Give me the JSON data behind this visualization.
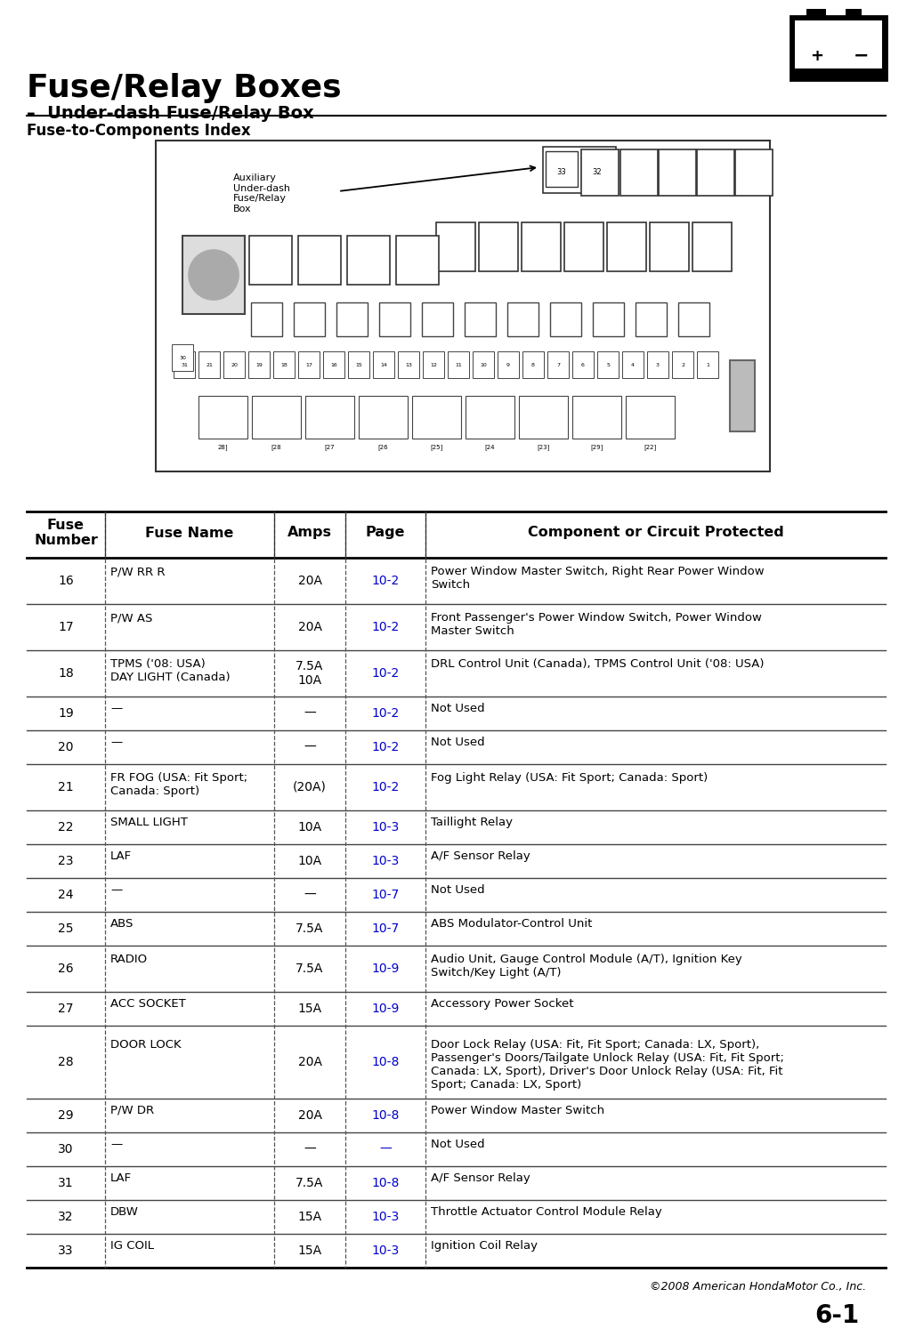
{
  "title": "Fuse/Relay Boxes",
  "subtitle": "Under-dash Fuse/Relay Box",
  "section_title": "Fuse-to-Components Index",
  "copyright": "©2008 American HondaMotor Co., Inc.",
  "page_num": "6-1",
  "col_headers": [
    "Fuse\nNumber",
    "Fuse Name",
    "Amps",
    "Page",
    "Component or Circuit Protected"
  ],
  "rows": [
    {
      "num": "16",
      "name": "P/W RR R",
      "amps": "20A",
      "page": "10-2",
      "desc": "Power Window Master Switch, Right Rear Power Window\nSwitch"
    },
    {
      "num": "17",
      "name": "P/W AS",
      "amps": "20A",
      "page": "10-2",
      "desc": "Front Passenger's Power Window Switch, Power Window\nMaster Switch"
    },
    {
      "num": "18",
      "name": "TPMS ('08: USA)\nDAY LIGHT (Canada)",
      "amps": "7.5A\n10A",
      "page": "10-2",
      "desc": "DRL Control Unit (Canada), TPMS Control Unit ('08: USA)"
    },
    {
      "num": "19",
      "name": "—",
      "amps": "—",
      "page": "10-2",
      "desc": "Not Used"
    },
    {
      "num": "20",
      "name": "—",
      "amps": "—",
      "page": "10-2",
      "desc": "Not Used"
    },
    {
      "num": "21",
      "name": "FR FOG (USA: Fit Sport;\nCanada: Sport)",
      "amps": "(20A)",
      "page": "10-2",
      "desc": "Fog Light Relay (USA: Fit Sport; Canada: Sport)"
    },
    {
      "num": "22",
      "name": "SMALL LIGHT",
      "amps": "10A",
      "page": "10-3",
      "desc": "Taillight Relay"
    },
    {
      "num": "23",
      "name": "LAF",
      "amps": "10A",
      "page": "10-3",
      "desc": "A/F Sensor Relay"
    },
    {
      "num": "24",
      "name": "—",
      "amps": "—",
      "page": "10-7",
      "desc": "Not Used"
    },
    {
      "num": "25",
      "name": "ABS",
      "amps": "7.5A",
      "page": "10-7",
      "desc": "ABS Modulator-Control Unit"
    },
    {
      "num": "26",
      "name": "RADIO",
      "amps": "7.5A",
      "page": "10-9",
      "desc": "Audio Unit, Gauge Control Module (A/T), Ignition Key\nSwitch/Key Light (A/T)"
    },
    {
      "num": "27",
      "name": "ACC SOCKET",
      "amps": "15A",
      "page": "10-9",
      "desc": "Accessory Power Socket"
    },
    {
      "num": "28",
      "name": "DOOR LOCK",
      "amps": "20A",
      "page": "10-8",
      "desc": "Door Lock Relay (USA: Fit, Fit Sport; Canada: LX, Sport),\nPassenger's Doors/Tailgate Unlock Relay (USA: Fit, Fit Sport;\nCanada: LX, Sport), Driver's Door Unlock Relay (USA: Fit, Fit\nSport; Canada: LX, Sport)"
    },
    {
      "num": "29",
      "name": "P/W DR",
      "amps": "20A",
      "page": "10-8",
      "desc": "Power Window Master Switch"
    },
    {
      "num": "30",
      "name": "—",
      "amps": "—",
      "page": "—",
      "desc": "Not Used"
    },
    {
      "num": "31",
      "name": "LAF",
      "amps": "7.5A",
      "page": "10-8",
      "desc": "A/F Sensor Relay"
    },
    {
      "num": "32",
      "name": "DBW",
      "amps": "15A",
      "page": "10-3",
      "desc": "Throttle Actuator Control Module Relay"
    },
    {
      "num": "33",
      "name": "IG COIL",
      "amps": "15A",
      "page": "10-3",
      "desc": "Ignition Coil Relay"
    }
  ],
  "bg_color": "#ffffff",
  "text_color": "#000000",
  "link_color": "#0000cc",
  "line_color": "#000000"
}
